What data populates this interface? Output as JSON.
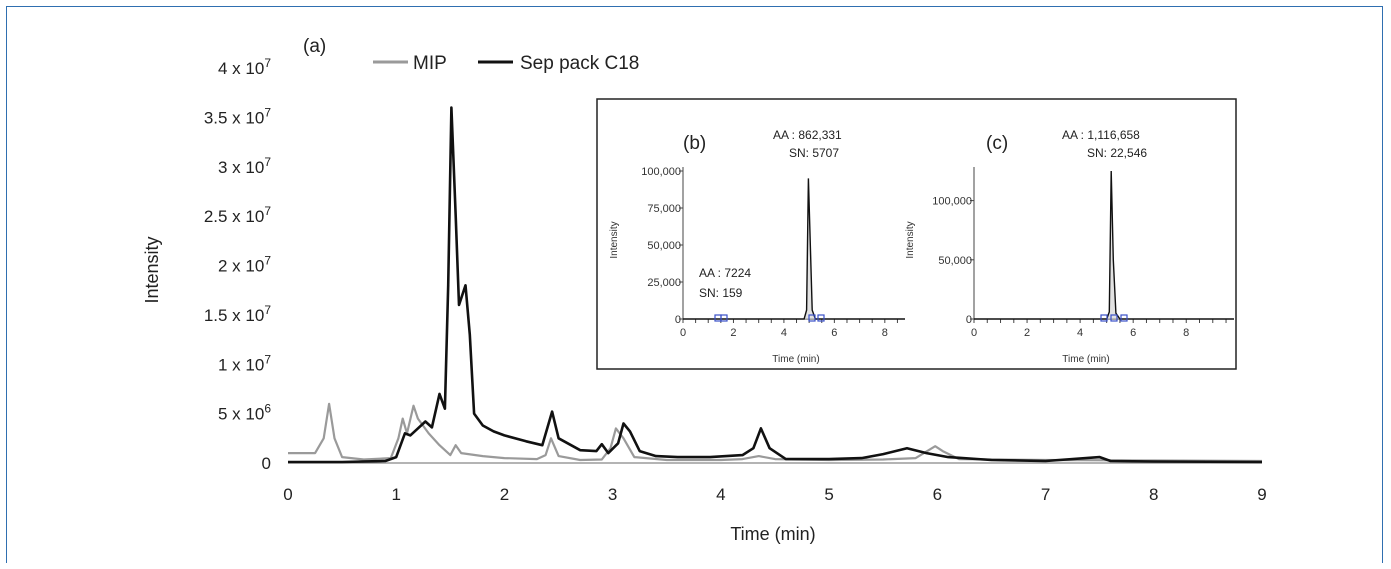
{
  "chart_data": [
    {
      "panel": "(a)",
      "type": "line",
      "xlabel": "Time (min)",
      "ylabel": "Intensity",
      "xlim": [
        0,
        9
      ],
      "ylim": [
        0,
        40000000
      ],
      "x_ticks": [
        "0",
        "1",
        "2",
        "3",
        "4",
        "5",
        "6",
        "7",
        "8",
        "9"
      ],
      "y_ticks": [
        {
          "base": "0",
          "exp": ""
        },
        {
          "base": "5 x 10",
          "exp": "6"
        },
        {
          "base": "1 x 10",
          "exp": "7"
        },
        {
          "base": "1.5 x 10",
          "exp": "7"
        },
        {
          "base": "2 x 10",
          "exp": "7"
        },
        {
          "base": "2.5 x 10",
          "exp": "7"
        },
        {
          "base": "3 x 10",
          "exp": "7"
        },
        {
          "base": "3.5 x 10",
          "exp": "7"
        },
        {
          "base": "4 x 10",
          "exp": "7"
        }
      ],
      "legend_position": "top",
      "series": [
        {
          "name": "MIP",
          "color": "#9a9a9a",
          "points": [
            [
              0,
              1000000
            ],
            [
              0.25,
              1000000
            ],
            [
              0.33,
              2500000
            ],
            [
              0.38,
              6000000
            ],
            [
              0.43,
              2500000
            ],
            [
              0.5,
              600000
            ],
            [
              0.7,
              350000
            ],
            [
              0.95,
              500000
            ],
            [
              1.02,
              2500000
            ],
            [
              1.06,
              4500000
            ],
            [
              1.1,
              3000000
            ],
            [
              1.16,
              5800000
            ],
            [
              1.2,
              4500000
            ],
            [
              1.3,
              3000000
            ],
            [
              1.4,
              1800000
            ],
            [
              1.5,
              800000
            ],
            [
              1.55,
              1800000
            ],
            [
              1.6,
              1000000
            ],
            [
              1.8,
              700000
            ],
            [
              2.0,
              500000
            ],
            [
              2.3,
              400000
            ],
            [
              2.38,
              800000
            ],
            [
              2.43,
              2500000
            ],
            [
              2.5,
              700000
            ],
            [
              2.7,
              300000
            ],
            [
              2.9,
              350000
            ],
            [
              2.98,
              1500000
            ],
            [
              3.03,
              3500000
            ],
            [
              3.1,
              2500000
            ],
            [
              3.2,
              600000
            ],
            [
              3.5,
              300000
            ],
            [
              4.0,
              300000
            ],
            [
              4.2,
              400000
            ],
            [
              4.35,
              700000
            ],
            [
              4.5,
              400000
            ],
            [
              5.0,
              300000
            ],
            [
              5.5,
              350000
            ],
            [
              5.8,
              500000
            ],
            [
              5.98,
              1700000
            ],
            [
              6.05,
              1200000
            ],
            [
              6.2,
              400000
            ],
            [
              7.0,
              300000
            ],
            [
              8.0,
              250000
            ],
            [
              9.0,
              200000
            ]
          ]
        },
        {
          "name": "Sep pack C18",
          "color": "#111111",
          "points": [
            [
              0,
              100000
            ],
            [
              0.5,
              100000
            ],
            [
              0.9,
              200000
            ],
            [
              1.0,
              600000
            ],
            [
              1.08,
              3000000
            ],
            [
              1.13,
              2800000
            ],
            [
              1.2,
              3500000
            ],
            [
              1.27,
              4200000
            ],
            [
              1.33,
              3600000
            ],
            [
              1.4,
              7000000
            ],
            [
              1.45,
              5500000
            ],
            [
              1.48,
              18000000
            ],
            [
              1.51,
              36000000
            ],
            [
              1.55,
              25000000
            ],
            [
              1.58,
              16000000
            ],
            [
              1.64,
              18000000
            ],
            [
              1.68,
              13000000
            ],
            [
              1.72,
              5000000
            ],
            [
              1.8,
              3800000
            ],
            [
              1.9,
              3200000
            ],
            [
              2.0,
              2800000
            ],
            [
              2.2,
              2200000
            ],
            [
              2.35,
              1800000
            ],
            [
              2.44,
              5200000
            ],
            [
              2.5,
              2500000
            ],
            [
              2.7,
              1300000
            ],
            [
              2.85,
              1200000
            ],
            [
              2.9,
              1900000
            ],
            [
              2.96,
              1000000
            ],
            [
              3.05,
              2000000
            ],
            [
              3.1,
              4000000
            ],
            [
              3.16,
              3200000
            ],
            [
              3.25,
              1200000
            ],
            [
              3.4,
              700000
            ],
            [
              3.6,
              600000
            ],
            [
              3.9,
              600000
            ],
            [
              4.2,
              800000
            ],
            [
              4.3,
              1500000
            ],
            [
              4.37,
              3500000
            ],
            [
              4.45,
              1500000
            ],
            [
              4.6,
              400000
            ],
            [
              5.0,
              400000
            ],
            [
              5.3,
              500000
            ],
            [
              5.5,
              900000
            ],
            [
              5.72,
              1500000
            ],
            [
              5.9,
              1000000
            ],
            [
              6.1,
              600000
            ],
            [
              6.5,
              300000
            ],
            [
              7.0,
              200000
            ],
            [
              7.5,
              600000
            ],
            [
              7.6,
              200000
            ],
            [
              8.0,
              150000
            ],
            [
              9.0,
              100000
            ]
          ]
        }
      ]
    },
    {
      "panel": "(b)",
      "type": "line",
      "xlabel": "Time (min)",
      "ylabel": "Intensity",
      "xlim": [
        0,
        8.8
      ],
      "ylim": [
        0,
        100000
      ],
      "x_ticks": [
        "0",
        "2",
        "4",
        "6",
        "8"
      ],
      "y_ticks": [
        "0",
        "25,000",
        "50,000",
        "75,000",
        "100,000"
      ],
      "series": [
        {
          "color": "#111111",
          "points": [
            [
              0,
              0
            ],
            [
              4.8,
              0
            ],
            [
              4.9,
              6000
            ],
            [
              4.97,
              95000
            ],
            [
              5.03,
              60000
            ],
            [
              5.12,
              6000
            ],
            [
              5.25,
              0
            ],
            [
              8.8,
              0
            ]
          ]
        }
      ],
      "annotations": [
        {
          "lines": [
            "AA : 862,331",
            "SN: 5707"
          ]
        },
        {
          "lines": [
            "AA : 7224",
            "SN: 159"
          ]
        }
      ]
    },
    {
      "panel": "(c)",
      "type": "line",
      "xlabel": "Time (min)",
      "ylabel": "Intensity",
      "xlim": [
        0,
        9.8
      ],
      "ylim": [
        0,
        125000
      ],
      "x_ticks": [
        "0",
        "2",
        "4",
        "6",
        "8"
      ],
      "y_ticks": [
        "0",
        "50,000",
        "100,000"
      ],
      "series": [
        {
          "color": "#111111",
          "points": [
            [
              0,
              0
            ],
            [
              5.0,
              0
            ],
            [
              5.1,
              6000
            ],
            [
              5.17,
              125000
            ],
            [
              5.25,
              50000
            ],
            [
              5.35,
              5000
            ],
            [
              5.5,
              0
            ],
            [
              9.8,
              0
            ]
          ]
        }
      ],
      "annotations": [
        {
          "lines": [
            "AA : 1,116,658",
            "SN: 22,546"
          ]
        }
      ]
    }
  ]
}
